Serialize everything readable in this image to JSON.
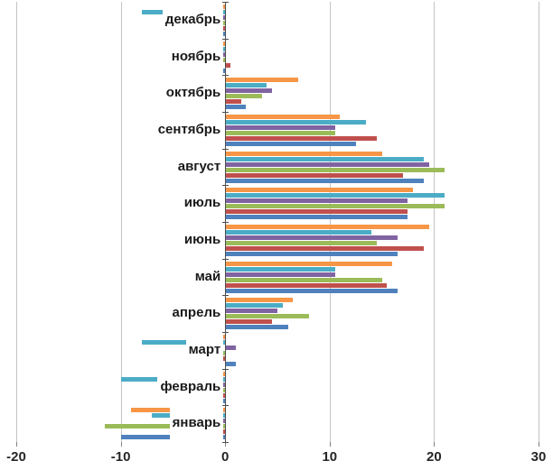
{
  "chart_data": {
    "type": "bar",
    "orientation": "horizontal",
    "title": "",
    "xlabel": "",
    "ylabel": "",
    "legend": false,
    "grid": true,
    "xlim": [
      -20,
      30
    ],
    "x_ticks": [
      -20,
      -10,
      0,
      10,
      20,
      30
    ],
    "categories": [
      "декабрь",
      "ноябрь",
      "октябрь",
      "сентябрь",
      "август",
      "июль",
      "июнь",
      "май",
      "апрель",
      "март",
      "февраль",
      "январь"
    ],
    "series": [
      {
        "name": "orange",
        "color": "#F79646",
        "values": [
          -2,
          -1,
          7,
          11,
          15,
          18,
          19.5,
          16,
          6.5,
          -0.5,
          -4,
          -9
        ]
      },
      {
        "name": "teal",
        "color": "#4BACC6",
        "values": [
          -8,
          -2,
          4,
          13.5,
          19,
          21,
          14,
          10.5,
          5.5,
          -8,
          -10,
          -7
        ]
      },
      {
        "name": "purple",
        "color": "#8064A2",
        "values": [
          -4,
          -0.5,
          4.5,
          10.5,
          19.5,
          17.5,
          16.5,
          10.5,
          5,
          1,
          -1.5,
          -3
        ]
      },
      {
        "name": "green",
        "color": "#9BBB59",
        "values": [
          -1.5,
          -1.5,
          3.5,
          10.5,
          21,
          21,
          14.5,
          15,
          8,
          -1,
          -2,
          -11.5
        ]
      },
      {
        "name": "red",
        "color": "#C0504D",
        "values": [
          -2.5,
          0.5,
          1.5,
          14.5,
          17,
          17.5,
          19,
          15.5,
          4.5,
          -0.5,
          -1,
          -4
        ]
      },
      {
        "name": "blue",
        "color": "#4F81BD",
        "values": [
          -3,
          -2,
          2,
          12.5,
          19,
          17.5,
          16.5,
          16.5,
          6,
          1,
          -5,
          -10
        ]
      }
    ],
    "axis_colors": {
      "gridline": "#c3c3c3",
      "zero_axis": "#4d4d4d",
      "tick_label": "#262626"
    },
    "background": "#ffffff"
  }
}
